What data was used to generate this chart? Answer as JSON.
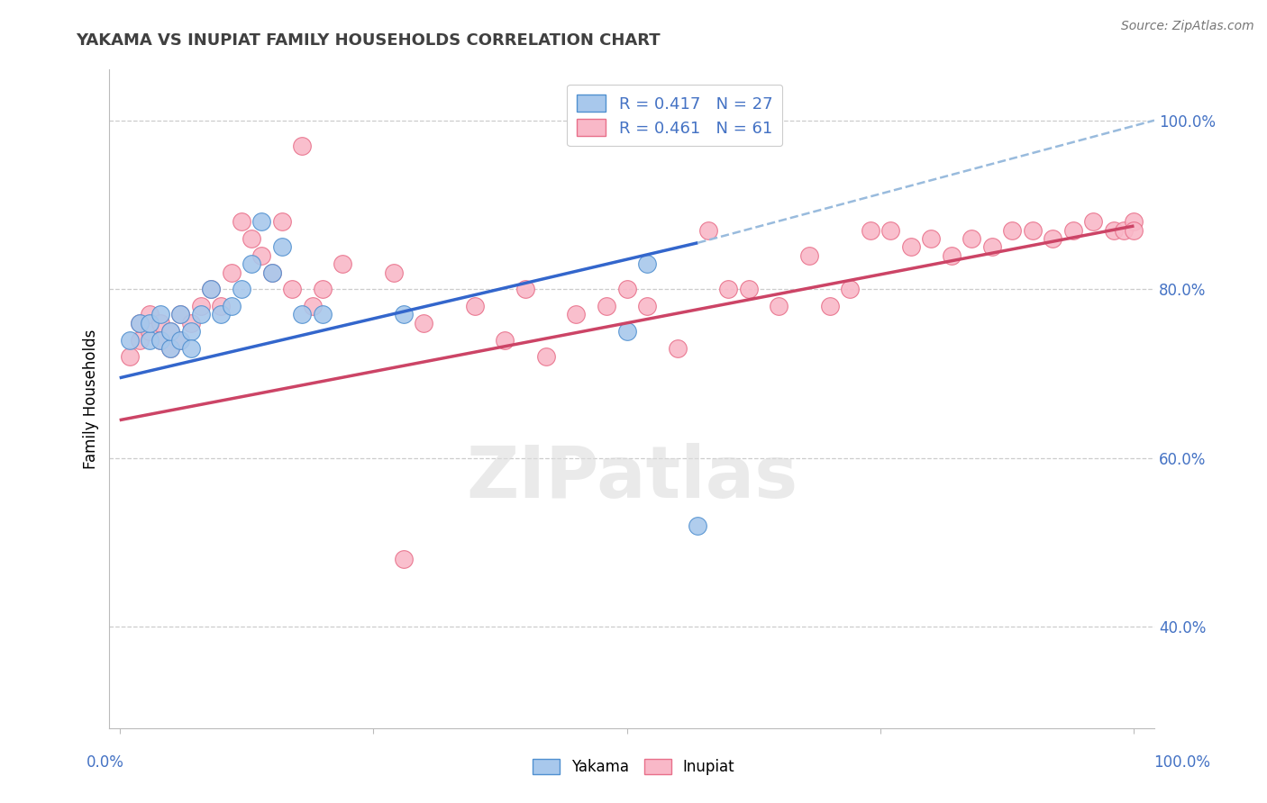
{
  "title": "YAKAMA VS INUPIAT FAMILY HOUSEHOLDS CORRELATION CHART",
  "source": "Source: ZipAtlas.com",
  "ylabel": "Family Households",
  "ytick_values": [
    0.4,
    0.6,
    0.8,
    1.0
  ],
  "ytick_labels": [
    "40.0%",
    "60.0%",
    "80.0%",
    "100.0%"
  ],
  "legend_blue_r": "R = 0.417",
  "legend_blue_n": "N = 27",
  "legend_pink_r": "R = 0.461",
  "legend_pink_n": "N = 61",
  "legend_label_blue": "Yakama",
  "legend_label_pink": "Inupiat",
  "blue_fill": "#A8C8EC",
  "blue_edge": "#5090D0",
  "pink_fill": "#F9B8C8",
  "pink_edge": "#E8708A",
  "blue_line": "#3366CC",
  "pink_line": "#CC4466",
  "dashed_line": "#99BBDD",
  "text_color": "#4472C4",
  "title_color": "#404040",
  "source_color": "#777777",
  "grid_color": "#CCCCCC",
  "watermark_color": "#DDDDDD",
  "yakama_x": [
    0.01,
    0.02,
    0.03,
    0.03,
    0.04,
    0.04,
    0.05,
    0.05,
    0.06,
    0.06,
    0.07,
    0.07,
    0.08,
    0.09,
    0.1,
    0.11,
    0.12,
    0.13,
    0.14,
    0.15,
    0.16,
    0.18,
    0.2,
    0.28,
    0.5,
    0.52,
    0.57
  ],
  "yakama_y": [
    0.74,
    0.76,
    0.74,
    0.76,
    0.74,
    0.77,
    0.73,
    0.75,
    0.74,
    0.77,
    0.75,
    0.73,
    0.77,
    0.8,
    0.77,
    0.78,
    0.8,
    0.83,
    0.88,
    0.82,
    0.85,
    0.77,
    0.77,
    0.77,
    0.75,
    0.83,
    0.52
  ],
  "inupiat_x": [
    0.01,
    0.02,
    0.02,
    0.03,
    0.03,
    0.04,
    0.04,
    0.05,
    0.05,
    0.06,
    0.06,
    0.07,
    0.08,
    0.09,
    0.1,
    0.11,
    0.12,
    0.13,
    0.14,
    0.15,
    0.16,
    0.17,
    0.18,
    0.19,
    0.2,
    0.22,
    0.27,
    0.3,
    0.35,
    0.38,
    0.4,
    0.42,
    0.45,
    0.48,
    0.5,
    0.52,
    0.55,
    0.58,
    0.6,
    0.62,
    0.65,
    0.68,
    0.7,
    0.72,
    0.74,
    0.76,
    0.78,
    0.8,
    0.82,
    0.84,
    0.86,
    0.88,
    0.9,
    0.92,
    0.94,
    0.96,
    0.98,
    0.99,
    1.0,
    1.0,
    0.28
  ],
  "inupiat_y": [
    0.72,
    0.74,
    0.76,
    0.75,
    0.77,
    0.74,
    0.76,
    0.73,
    0.75,
    0.74,
    0.77,
    0.76,
    0.78,
    0.8,
    0.78,
    0.82,
    0.88,
    0.86,
    0.84,
    0.82,
    0.88,
    0.8,
    0.97,
    0.78,
    0.8,
    0.83,
    0.82,
    0.76,
    0.78,
    0.74,
    0.8,
    0.72,
    0.77,
    0.78,
    0.8,
    0.78,
    0.73,
    0.87,
    0.8,
    0.8,
    0.78,
    0.84,
    0.78,
    0.8,
    0.87,
    0.87,
    0.85,
    0.86,
    0.84,
    0.86,
    0.85,
    0.87,
    0.87,
    0.86,
    0.87,
    0.88,
    0.87,
    0.87,
    0.88,
    0.87,
    0.48
  ],
  "xlim": [
    -0.01,
    1.02
  ],
  "ylim": [
    0.28,
    1.06
  ],
  "blue_line_x": [
    0.0,
    0.57
  ],
  "blue_line_y": [
    0.695,
    0.855
  ],
  "pink_line_x": [
    0.0,
    1.0
  ],
  "pink_line_y": [
    0.645,
    0.875
  ],
  "dashed_line_x": [
    0.57,
    1.02
  ],
  "dashed_line_y": [
    0.855,
    1.0
  ]
}
